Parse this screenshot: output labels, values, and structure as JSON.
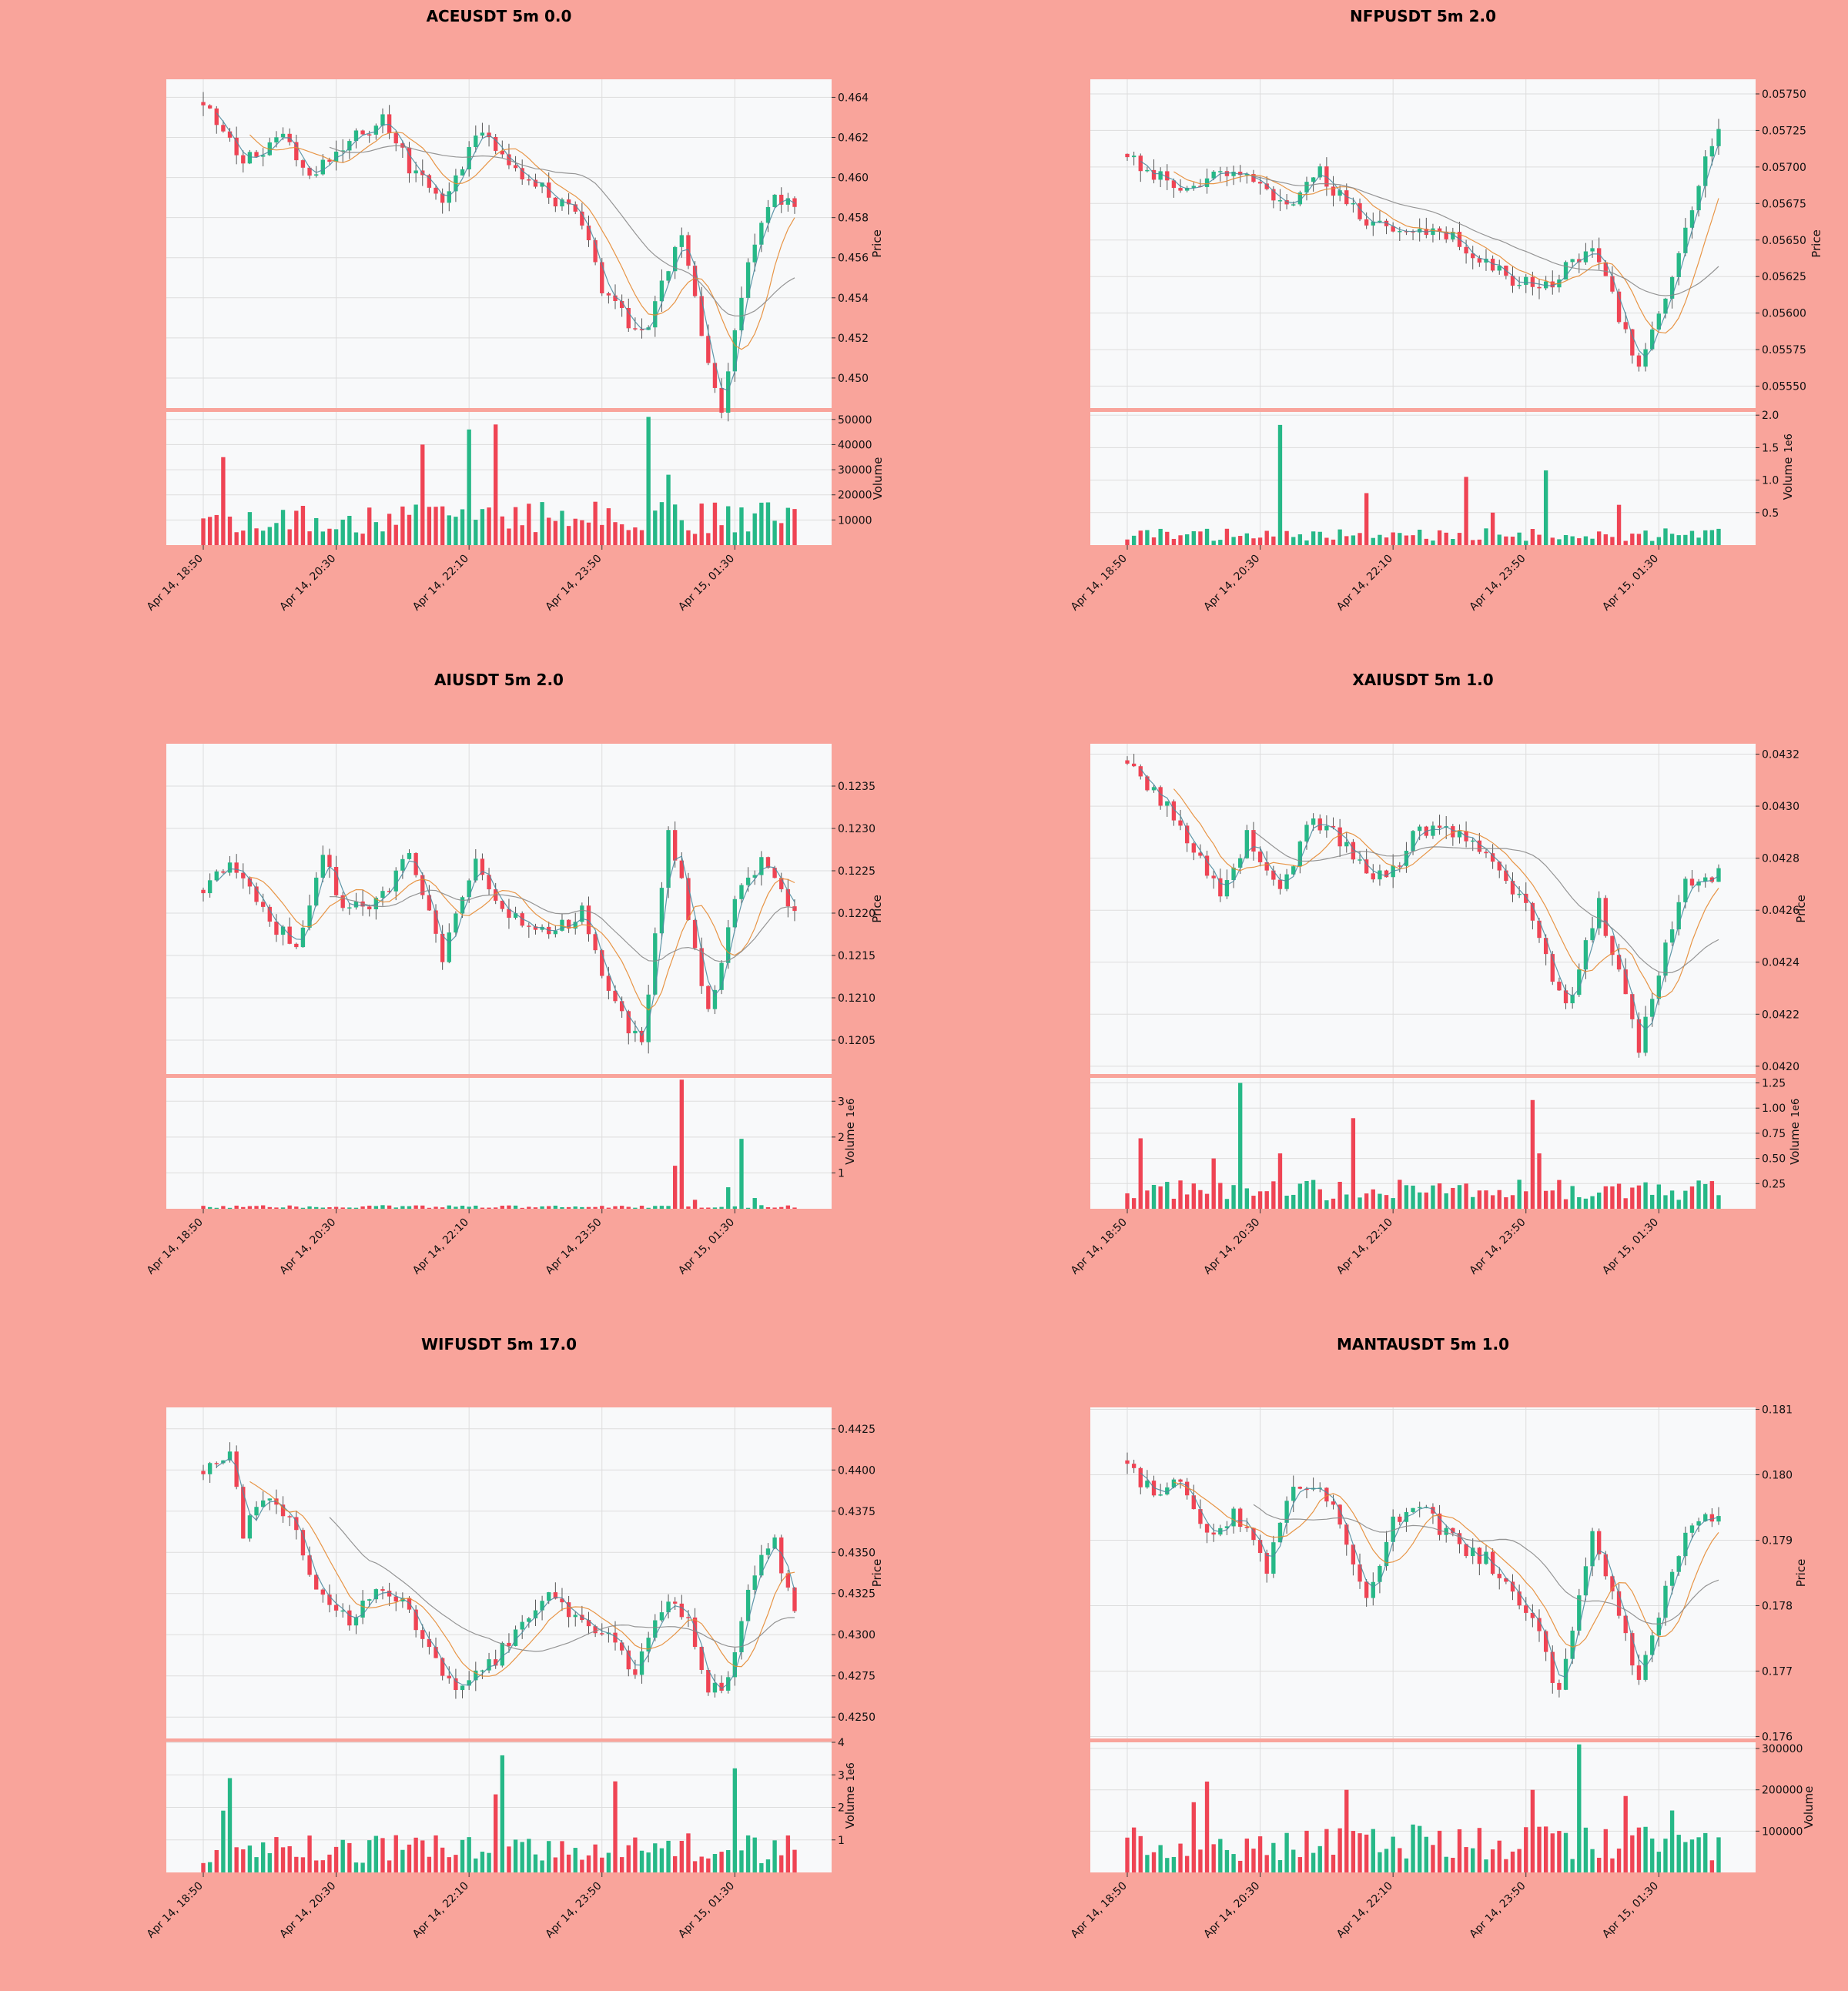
{
  "figure": {
    "background": "#F9A49B",
    "plot_bg": "#F8F9FA",
    "up_color": "#26B887",
    "down_color": "#EF4454"
  },
  "x_tick_labels": [
    "Apr 14, 18:50",
    "Apr 14, 20:30",
    "Apr 14, 22:10",
    "Apr 14, 23:50",
    "Apr 15, 01:30"
  ],
  "x_tick_index": [
    0,
    20,
    40,
    60,
    80
  ],
  "candle_count": 90,
  "chart_data": [
    {
      "type": "candlestick",
      "title": "ACEUSDT 5m 0.0",
      "price_label": "Price",
      "volume_label": "Volume",
      "volume_multiplier": "",
      "price_ticks": [
        "0.450",
        "0.452",
        "0.454",
        "0.456",
        "0.458",
        "0.460",
        "0.462",
        "0.464"
      ],
      "price_tick_values": [
        0.45,
        0.452,
        0.454,
        0.456,
        0.458,
        0.46,
        0.462,
        0.464
      ],
      "ylim": [
        0.4485,
        0.4649
      ],
      "volume_ticks": [
        "10000",
        "20000",
        "30000",
        "40000",
        "50000"
      ],
      "volume_tick_values": [
        10000,
        20000,
        30000,
        40000,
        50000
      ],
      "vlim": [
        0,
        53000
      ],
      "anchors": [
        [
          0,
          0.4635
        ],
        [
          6,
          0.4608
        ],
        [
          12,
          0.4622
        ],
        [
          16,
          0.4598
        ],
        [
          20,
          0.4612
        ],
        [
          27,
          0.463
        ],
        [
          31,
          0.4605
        ],
        [
          36,
          0.459
        ],
        [
          42,
          0.4625
        ],
        [
          49,
          0.4598
        ],
        [
          57,
          0.458
        ],
        [
          60,
          0.4545
        ],
        [
          66,
          0.452
        ],
        [
          72,
          0.457
        ],
        [
          78,
          0.448
        ],
        [
          82,
          0.456
        ],
        [
          86,
          0.459
        ],
        [
          89,
          0.4585
        ]
      ],
      "vol_base": 12000,
      "vol_spikes": [
        [
          3,
          35000
        ],
        [
          33,
          40000
        ],
        [
          40,
          46000
        ],
        [
          44,
          48000
        ],
        [
          67,
          51000
        ],
        [
          70,
          28000
        ],
        [
          85,
          17000
        ]
      ]
    },
    {
      "type": "candlestick",
      "title": "NFPUSDT 5m 2.0",
      "price_label": "Price",
      "volume_label": "Volume",
      "volume_multiplier": "1e6",
      "price_ticks": [
        "0.05550",
        "0.05575",
        "0.05600",
        "0.05625",
        "0.05650",
        "0.05675",
        "0.05700",
        "0.05725",
        "0.05750"
      ],
      "price_tick_values": [
        0.0555,
        0.05575,
        0.056,
        0.05625,
        0.0565,
        0.05675,
        0.057,
        0.05725,
        0.0575
      ],
      "ylim": [
        0.05535,
        0.0576
      ],
      "volume_ticks": [
        "0.5",
        "1.0",
        "1.5",
        "2.0"
      ],
      "volume_tick_values": [
        0.5,
        1.0,
        1.5,
        2.0
      ],
      "vlim": [
        0,
        2.05
      ],
      "anchors": [
        [
          0,
          0.05705
        ],
        [
          8,
          0.05685
        ],
        [
          16,
          0.05695
        ],
        [
          24,
          0.05675
        ],
        [
          29,
          0.05695
        ],
        [
          35,
          0.05665
        ],
        [
          40,
          0.0566
        ],
        [
          48,
          0.05655
        ],
        [
          55,
          0.0563
        ],
        [
          62,
          0.05615
        ],
        [
          70,
          0.05645
        ],
        [
          77,
          0.05565
        ],
        [
          82,
          0.0562
        ],
        [
          86,
          0.0569
        ],
        [
          89,
          0.05725
        ]
      ],
      "vol_base": 0.18,
      "vol_spikes": [
        [
          23,
          1.85
        ],
        [
          36,
          0.8
        ],
        [
          51,
          1.05
        ],
        [
          63,
          1.15
        ],
        [
          74,
          0.62
        ],
        [
          55,
          0.5
        ]
      ]
    },
    {
      "type": "candlestick",
      "title": "AIUSDT 5m 2.0",
      "price_label": "Price",
      "volume_label": "Volume",
      "volume_multiplier": "1e6",
      "price_ticks": [
        "0.1205",
        "0.1210",
        "0.1215",
        "0.1220",
        "0.1225",
        "0.1230",
        "0.1235"
      ],
      "price_tick_values": [
        0.1205,
        0.121,
        0.1215,
        0.122,
        0.1225,
        0.123,
        0.1235
      ],
      "ylim": [
        0.1201,
        0.124
      ],
      "volume_ticks": [
        "1",
        "2",
        "3"
      ],
      "volume_tick_values": [
        1,
        2,
        3
      ],
      "vlim": [
        0,
        3.65
      ],
      "anchors": [
        [
          0,
          0.1222
        ],
        [
          4,
          0.1226
        ],
        [
          9,
          0.122
        ],
        [
          14,
          0.1216
        ],
        [
          18,
          0.1226
        ],
        [
          22,
          0.122
        ],
        [
          27,
          0.1222
        ],
        [
          31,
          0.1228
        ],
        [
          36,
          0.1215
        ],
        [
          41,
          0.1226
        ],
        [
          46,
          0.122
        ],
        [
          53,
          0.1218
        ],
        [
          57,
          0.122
        ],
        [
          60,
          0.1212
        ],
        [
          66,
          0.1204
        ],
        [
          70,
          0.123
        ],
        [
          73,
          0.122
        ],
        [
          76,
          0.1208
        ],
        [
          80,
          0.1222
        ],
        [
          84,
          0.1226
        ],
        [
          89,
          0.122
        ]
      ],
      "vol_base": 0.07,
      "vol_spikes": [
        [
          71,
          1.2
        ],
        [
          72,
          3.6
        ],
        [
          74,
          0.25
        ],
        [
          79,
          0.6
        ],
        [
          81,
          1.95
        ],
        [
          83,
          0.3
        ]
      ]
    },
    {
      "type": "candlestick",
      "title": "XAIUSDT 5m 1.0",
      "price_label": "Price",
      "volume_label": "Volume",
      "volume_multiplier": "1e6",
      "price_ticks": [
        "0.0420",
        "0.0422",
        "0.0424",
        "0.0426",
        "0.0428",
        "0.0430",
        "0.0432"
      ],
      "price_tick_values": [
        0.042,
        0.0422,
        0.0424,
        0.0426,
        0.0428,
        0.043,
        0.0432
      ],
      "ylim": [
        0.04197,
        0.04324
      ],
      "volume_ticks": [
        "0.25",
        "0.50",
        "0.75",
        "1.00",
        "1.25"
      ],
      "volume_tick_values": [
        0.25,
        0.5,
        0.75,
        1.0,
        1.25
      ],
      "vlim": [
        0,
        1.3
      ],
      "anchors": [
        [
          0,
          0.04315
        ],
        [
          5,
          0.04303
        ],
        [
          9,
          0.04287
        ],
        [
          14,
          0.04268
        ],
        [
          18,
          0.04288
        ],
        [
          23,
          0.04268
        ],
        [
          28,
          0.04296
        ],
        [
          33,
          0.04284
        ],
        [
          39,
          0.0427
        ],
        [
          44,
          0.04292
        ],
        [
          50,
          0.04288
        ],
        [
          56,
          0.04275
        ],
        [
          60,
          0.04262
        ],
        [
          66,
          0.04222
        ],
        [
          71,
          0.04262
        ],
        [
          77,
          0.04208
        ],
        [
          80,
          0.04238
        ],
        [
          84,
          0.0427
        ],
        [
          89,
          0.04275
        ]
      ],
      "vol_base": 0.2,
      "vol_spikes": [
        [
          2,
          0.7
        ],
        [
          17,
          1.25
        ],
        [
          23,
          0.55
        ],
        [
          34,
          0.9
        ],
        [
          61,
          1.08
        ],
        [
          62,
          0.55
        ],
        [
          13,
          0.5
        ]
      ]
    },
    {
      "type": "candlestick",
      "title": "WIFUSDT 5m 17.0",
      "price_label": "Price",
      "volume_label": "Volume",
      "volume_multiplier": "1e6",
      "price_ticks": [
        "0.4250",
        "0.4275",
        "0.4300",
        "0.4325",
        "0.4350",
        "0.4375",
        "0.4400",
        "0.4425"
      ],
      "price_tick_values": [
        0.425,
        0.4275,
        0.43,
        0.4325,
        0.435,
        0.4375,
        0.44,
        0.4425
      ],
      "ylim": [
        0.4237,
        0.4438
      ],
      "volume_ticks": [
        "1",
        "2",
        "3",
        "4"
      ],
      "volume_tick_values": [
        1,
        2,
        3,
        4
      ],
      "vlim": [
        0,
        4.0
      ],
      "anchors": [
        [
          0,
          0.4395
        ],
        [
          4,
          0.4415
        ],
        [
          6,
          0.4362
        ],
        [
          10,
          0.4385
        ],
        [
          14,
          0.4362
        ],
        [
          18,
          0.432
        ],
        [
          22,
          0.431
        ],
        [
          25,
          0.4325
        ],
        [
          30,
          0.4318
        ],
        [
          34,
          0.429
        ],
        [
          38,
          0.427
        ],
        [
          42,
          0.4278
        ],
        [
          45,
          0.429
        ],
        [
          52,
          0.4322
        ],
        [
          57,
          0.4305
        ],
        [
          61,
          0.43
        ],
        [
          65,
          0.4278
        ],
        [
          70,
          0.4322
        ],
        [
          73,
          0.431
        ],
        [
          76,
          0.4265
        ],
        [
          79,
          0.427
        ],
        [
          83,
          0.434
        ],
        [
          86,
          0.4355
        ],
        [
          89,
          0.4312
        ]
      ],
      "vol_base": 0.8,
      "vol_spikes": [
        [
          4,
          2.9
        ],
        [
          3,
          1.9
        ],
        [
          44,
          2.4
        ],
        [
          45,
          3.6
        ],
        [
          62,
          2.8
        ],
        [
          80,
          3.2
        ],
        [
          73,
          1.2
        ]
      ]
    },
    {
      "type": "candlestick",
      "title": "MANTAUSDT 5m 1.0",
      "price_label": "Price",
      "volume_label": "Volume",
      "volume_multiplier": "",
      "price_ticks": [
        "0.176",
        "0.177",
        "0.178",
        "0.179",
        "0.180",
        "0.181"
      ],
      "price_tick_values": [
        0.176,
        0.177,
        0.178,
        0.179,
        0.18,
        0.181
      ],
      "ylim": [
        0.17597,
        0.18103
      ],
      "volume_ticks": [
        "100000",
        "200000",
        "300000"
      ],
      "volume_tick_values": [
        100000,
        200000,
        300000
      ],
      "vlim": [
        0,
        315000
      ],
      "anchors": [
        [
          0,
          0.1801
        ],
        [
          4,
          0.1797
        ],
        [
          8,
          0.18
        ],
        [
          12,
          0.1791
        ],
        [
          16,
          0.1794
        ],
        [
          21,
          0.1786
        ],
        [
          25,
          0.1799
        ],
        [
          29,
          0.1799
        ],
        [
          33,
          0.179
        ],
        [
          36,
          0.178
        ],
        [
          40,
          0.1793
        ],
        [
          44,
          0.1795
        ],
        [
          49,
          0.179
        ],
        [
          54,
          0.1787
        ],
        [
          58,
          0.1783
        ],
        [
          62,
          0.1776
        ],
        [
          65,
          0.1766
        ],
        [
          70,
          0.1792
        ],
        [
          74,
          0.1778
        ],
        [
          77,
          0.1768
        ],
        [
          81,
          0.1782
        ],
        [
          85,
          0.1793
        ],
        [
          89,
          0.1793
        ]
      ],
      "vol_base": 80000,
      "vol_spikes": [
        [
          10,
          170000
        ],
        [
          12,
          220000
        ],
        [
          33,
          200000
        ],
        [
          61,
          200000
        ],
        [
          68,
          310000
        ],
        [
          75,
          185000
        ],
        [
          82,
          150000
        ]
      ]
    }
  ]
}
